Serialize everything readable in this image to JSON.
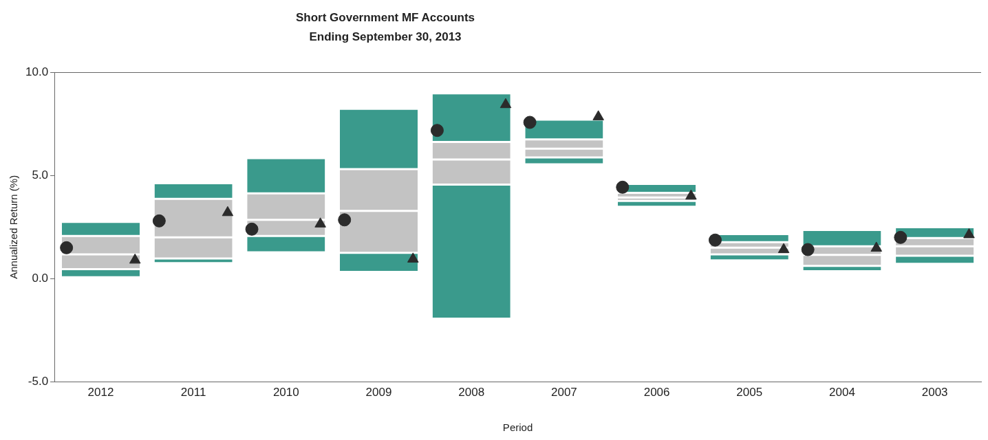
{
  "chart_data": {
    "type": "bar",
    "title": "Short Government MF Accounts",
    "subtitle": "Ending September 30, 2013",
    "xlabel": "Period",
    "ylabel": "Annualized Return (%)",
    "categories": [
      "2012",
      "2011",
      "2010",
      "2009",
      "2008",
      "2007",
      "2006",
      "2005",
      "2004",
      "2003"
    ],
    "series": [
      {
        "type": "bar",
        "color": "#3a9a8c",
        "base": [
          0.07,
          0.75,
          1.28,
          0.33,
          -1.93,
          5.54,
          3.48,
          0.89,
          0.36,
          0.72
        ],
        "values": [
          0.39,
          0.23,
          0.79,
          0.92,
          6.49,
          0.33,
          0.29,
          0.29,
          0.26,
          0.39
        ]
      },
      {
        "type": "bar",
        "color": "#c3c3c3",
        "base": [
          0.46,
          0.98,
          2.07,
          1.25,
          4.56,
          5.87,
          3.77,
          1.18,
          0.62,
          1.11
        ],
        "values": [
          0.72,
          1.02,
          0.78,
          2.03,
          1.21,
          0.43,
          0.16,
          0.32,
          0.53,
          0.46
        ]
      },
      {
        "type": "bar",
        "color": "#c3c3c3",
        "base": [
          1.18,
          2.0,
          2.85,
          3.28,
          5.77,
          6.3,
          3.93,
          1.5,
          1.15,
          1.57
        ],
        "values": [
          0.89,
          1.87,
          1.28,
          2.03,
          0.85,
          0.45,
          0.23,
          0.27,
          0.42,
          0.4
        ]
      },
      {
        "type": "bar",
        "color": "#3a9a8c",
        "base": [
          2.07,
          3.87,
          4.13,
          5.31,
          6.62,
          6.75,
          4.16,
          1.77,
          1.57,
          1.97
        ],
        "values": [
          0.68,
          0.75,
          1.71,
          2.92,
          2.36,
          0.95,
          0.43,
          0.39,
          0.79,
          0.52
        ]
      },
      {
        "type": "scatter",
        "marker": "circle",
        "color": "#2b2b2b",
        "values": [
          1.5,
          2.8,
          2.4,
          2.85,
          7.18,
          7.57,
          4.43,
          1.87,
          1.41,
          2.0
        ]
      },
      {
        "type": "scatter",
        "marker": "triangle",
        "color": "#2b2b2b",
        "values": [
          0.9,
          3.2,
          2.65,
          0.95,
          8.43,
          7.84,
          4.0,
          1.41,
          1.48,
          2.13
        ]
      }
    ],
    "ylim": [
      -5,
      10
    ],
    "yticks": [
      {
        "value": -5,
        "label": "-5.0"
      },
      {
        "value": 0,
        "label": "0.0"
      },
      {
        "value": 5,
        "label": "5.0"
      },
      {
        "value": 10,
        "label": "10.0"
      }
    ]
  }
}
